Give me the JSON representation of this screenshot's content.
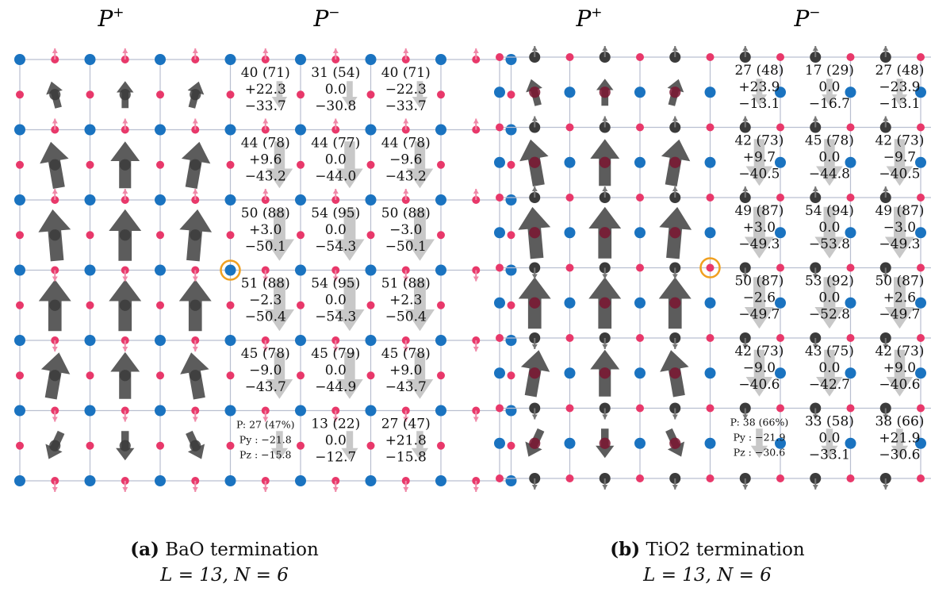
{
  "panels": [
    {
      "id": "a",
      "label_plus": "P+",
      "label_minus": "P−",
      "caption_bold": "(a)",
      "caption_text": "BaO termination",
      "caption_params": "L = 13, N = 6",
      "corner_colors": {
        "blue_sites": "#1a73c0",
        "red_sites": "#e8386a"
      },
      "stats": [
        [
          [
            "40 (71)",
            "+22.3",
            "−33.7"
          ],
          [
            "31 (54)",
            "0.0",
            "−30.8"
          ],
          [
            "40 (71)",
            "−22.3",
            "−33.7"
          ]
        ],
        [
          [
            "44 (78)",
            "+9.6",
            "−43.2"
          ],
          [
            "44 (77)",
            "0.0",
            "−44.0"
          ],
          [
            "44 (78)",
            "−9.6",
            "−43.2"
          ]
        ],
        [
          [
            "50 (88)",
            "+3.0",
            "−50.1"
          ],
          [
            "54 (95)",
            "0.0",
            "−54.3"
          ],
          [
            "50 (88)",
            "−3.0",
            "−50.1"
          ]
        ],
        [
          [
            "51 (88)",
            "−2.3",
            "−50.4"
          ],
          [
            "54 (95)",
            "0.0",
            "−54.3"
          ],
          [
            "51 (88)",
            "+2.3",
            "−50.4"
          ]
        ],
        [
          [
            "45 (78)",
            "−9.0",
            "−43.7"
          ],
          [
            "45 (79)",
            "0.0",
            "−44.9"
          ],
          [
            "45 (78)",
            "+9.0",
            "−43.7"
          ]
        ],
        [
          [
            "P: 27 (47%)",
            "Py : −21.8",
            "Pz : −15.8"
          ],
          [
            "13 (22)",
            "0.0",
            "−12.7"
          ],
          [
            "27 (47)",
            "+21.8",
            "−15.8"
          ]
        ]
      ]
    },
    {
      "id": "b",
      "label_plus": "P+",
      "label_minus": "P−",
      "caption_bold": "(b)",
      "caption_text": "TiO2 termination",
      "caption_params": "L = 13, N = 6",
      "stats": [
        [
          [
            "27 (48)",
            "+23.9",
            "−13.1"
          ],
          [
            "17 (29)",
            "0.0",
            "−16.7"
          ],
          [
            "27 (48)",
            "−23.9",
            "−13.1"
          ]
        ],
        [
          [
            "42 (73)",
            "+9.7",
            "−40.5"
          ],
          [
            "45 (78)",
            "0.0",
            "−44.8"
          ],
          [
            "42 (73)",
            "−9.7",
            "−40.5"
          ]
        ],
        [
          [
            "49 (87)",
            "+3.0",
            "−49.3"
          ],
          [
            "54 (94)",
            "0.0",
            "−53.8"
          ],
          [
            "49 (87)",
            "−3.0",
            "−49.3"
          ]
        ],
        [
          [
            "50 (87)",
            "−2.6",
            "−49.7"
          ],
          [
            "53 (92)",
            "0.0",
            "−52.8"
          ],
          [
            "50 (87)",
            "+2.6",
            "−49.7"
          ]
        ],
        [
          [
            "42 (73)",
            "−9.0",
            "−40.6"
          ],
          [
            "43 (75)",
            "0.0",
            "−42.7"
          ],
          [
            "42 (73)",
            "+9.0",
            "−40.6"
          ]
        ],
        [
          [
            "P: 38 (66%)",
            "Py : −21.9",
            "Pz : −30.6"
          ],
          [
            "33 (58)",
            "0.0",
            "−33.1"
          ],
          [
            "38 (66)",
            "+21.9",
            "−30.6"
          ]
        ]
      ]
    }
  ],
  "colors": {
    "blue": "#1a73c0",
    "red": "#e8386a",
    "dark": "#3b3b3b",
    "arrow_dark": "#5c5c5c",
    "arrow_light": "#c8c8c8",
    "grid": "#b9bfd0",
    "highlight": "#f0a020"
  }
}
